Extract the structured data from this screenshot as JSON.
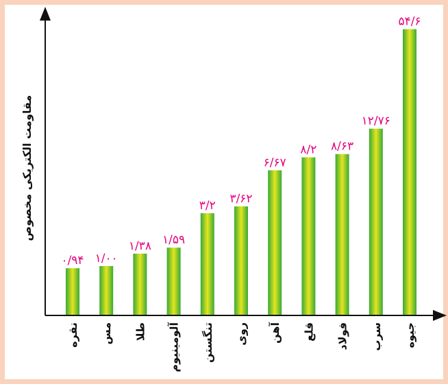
{
  "chart_data": {
    "type": "bar",
    "title": "",
    "xlabel": "",
    "ylabel": "مقاومت الکتریکی مخصوص",
    "ylim": [
      0,
      56
    ],
    "grid": false,
    "legend": "none",
    "categories": [
      "نقره",
      "مس",
      "طلا",
      "آلومینیوم",
      "تنگستن",
      "روی",
      "آهن",
      "قلع",
      "فولاد",
      "سرب",
      "جیوه"
    ],
    "values": [
      0.94,
      1.0,
      1.38,
      1.59,
      3.2,
      3.62,
      6.67,
      8.2,
      8.63,
      12.76,
      54.6
    ],
    "value_labels": [
      "۰/۹۴",
      "۱/۰۰",
      "۱/۳۸",
      "۱/۵۹",
      "۳/۲",
      "۳/۶۲",
      "۶/۶۷",
      "۸/۲",
      "۸/۶۳",
      "۱۲/۷۶",
      "۵۴/۶"
    ],
    "colors": {
      "bar_edge": "#3aa935",
      "bar_center": "#e3e61f",
      "value_label": "#e6007e",
      "frame": "#f9d3bb",
      "axis": "#111111"
    }
  }
}
